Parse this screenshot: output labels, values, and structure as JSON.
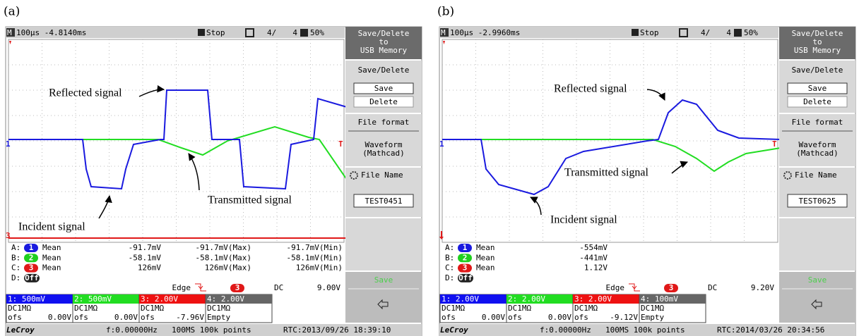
{
  "panels": [
    {
      "label": "(a)",
      "status": {
        "mode_icon": "M",
        "timebase": "100µs -4.8140ms",
        "run_state": "Stop",
        "page": "4/",
        "page_total": "4",
        "zoom": "50%"
      },
      "menu": {
        "usb": [
          "Save/Delete",
          "to",
          "USB Memory"
        ],
        "save_delete": "Save/Delete",
        "save": "Save",
        "delete": "Delete",
        "file_format": "File format",
        "format_value": [
          "Waveform",
          "(Mathcad)"
        ],
        "file_name": "File Name",
        "file_name_value": "TEST0451",
        "action": "Save"
      },
      "markers": {
        "ch1": "1",
        "ch3": "3",
        "trigger": "T"
      },
      "measurements": [
        {
          "slot": "A:",
          "channel": "1",
          "stat": "Mean",
          "value": "-91.7mV",
          "max": "-91.7mV(Max)",
          "min": "-91.7mV(Min)"
        },
        {
          "slot": "B:",
          "channel": "2",
          "stat": "Mean",
          "value": "-58.1mV",
          "max": "-58.1mV(Max)",
          "min": "-58.1mV(Min)"
        },
        {
          "slot": "C:",
          "channel": "3",
          "stat": "Mean",
          "value": "126mV",
          "max": "126mV(Max)",
          "min": "126mV(Min)"
        },
        {
          "slot": "D:",
          "channel": "Off"
        }
      ],
      "trigger": {
        "mode": "Edge",
        "channel": "3",
        "coupling": "DC",
        "level": "9.00V"
      },
      "channels": [
        {
          "label": "1: 500mV",
          "coupling": "DC1MΩ",
          "ofs_label": "ofs",
          "ofs": "0.00V"
        },
        {
          "label": "2: 500mV",
          "coupling": "DC1MΩ",
          "ofs_label": "ofs",
          "ofs": "0.00V"
        },
        {
          "label": "3: 2.00V",
          "coupling": "DC1MΩ",
          "ofs_label": "ofs",
          "ofs": "-7.96V"
        },
        {
          "label": "4: 2.00V",
          "coupling": "DC1MΩ",
          "ofs_label": "Empty"
        }
      ],
      "footer": {
        "brand": "LeCroy",
        "frequency": "f:0.00000Hz",
        "sampling": "100MS 100k points",
        "clock": "RTC:2013/09/26 18:39:10"
      },
      "annotations": {
        "reflected": "Reflected signal",
        "transmitted": "Transmitted signal",
        "incident": "Incident signal"
      }
    },
    {
      "label": "(b)",
      "status": {
        "mode_icon": "M",
        "timebase": "100µs -2.9960ms",
        "run_state": "Stop",
        "page": "4/",
        "page_total": "4",
        "zoom": "50%"
      },
      "menu": {
        "usb": [
          "Save/Delete",
          "to",
          "USB Memory"
        ],
        "save_delete": "Save/Delete",
        "save": "Save",
        "delete": "Delete",
        "file_format": "File format",
        "format_value": [
          "Waveform",
          "(Mathcad)"
        ],
        "file_name": "File Name",
        "file_name_value": "TEST0625",
        "action": "Save"
      },
      "markers": {
        "ch1": "1",
        "trigger": "T"
      },
      "measurements": [
        {
          "slot": "A:",
          "channel": "1",
          "stat": "Mean",
          "value": "-554mV"
        },
        {
          "slot": "B:",
          "channel": "2",
          "stat": "Mean",
          "value": "-441mV"
        },
        {
          "slot": "C:",
          "channel": "3",
          "stat": "Mean",
          "value": "1.12V"
        },
        {
          "slot": "D:",
          "channel": "Off"
        }
      ],
      "trigger": {
        "mode": "Edge",
        "channel": "3",
        "coupling": "DC",
        "level": "9.20V"
      },
      "channels": [
        {
          "label": "1: 2.00V",
          "coupling": "DC1MΩ",
          "ofs_label": "ofs",
          "ofs": "0.00V"
        },
        {
          "label": "2: 2.00V",
          "coupling": "DC1MΩ",
          "ofs_label": "ofs",
          "ofs": "0.00V"
        },
        {
          "label": "3: 2.00V",
          "coupling": "DC1MΩ",
          "ofs_label": "ofs",
          "ofs": "-9.12V"
        },
        {
          "label": "4: 100mV",
          "coupling": "DC1MΩ",
          "ofs_label": "Empty"
        }
      ],
      "footer": {
        "brand": "LeCroy",
        "frequency": "f:0.00000Hz",
        "sampling": "100MS 100k points",
        "clock": "RTC:2014/03/26 20:34:56"
      },
      "annotations": {
        "reflected": "Reflected signal",
        "transmitted": "Transmitted signal",
        "incident": "Incident signal"
      }
    }
  ]
}
